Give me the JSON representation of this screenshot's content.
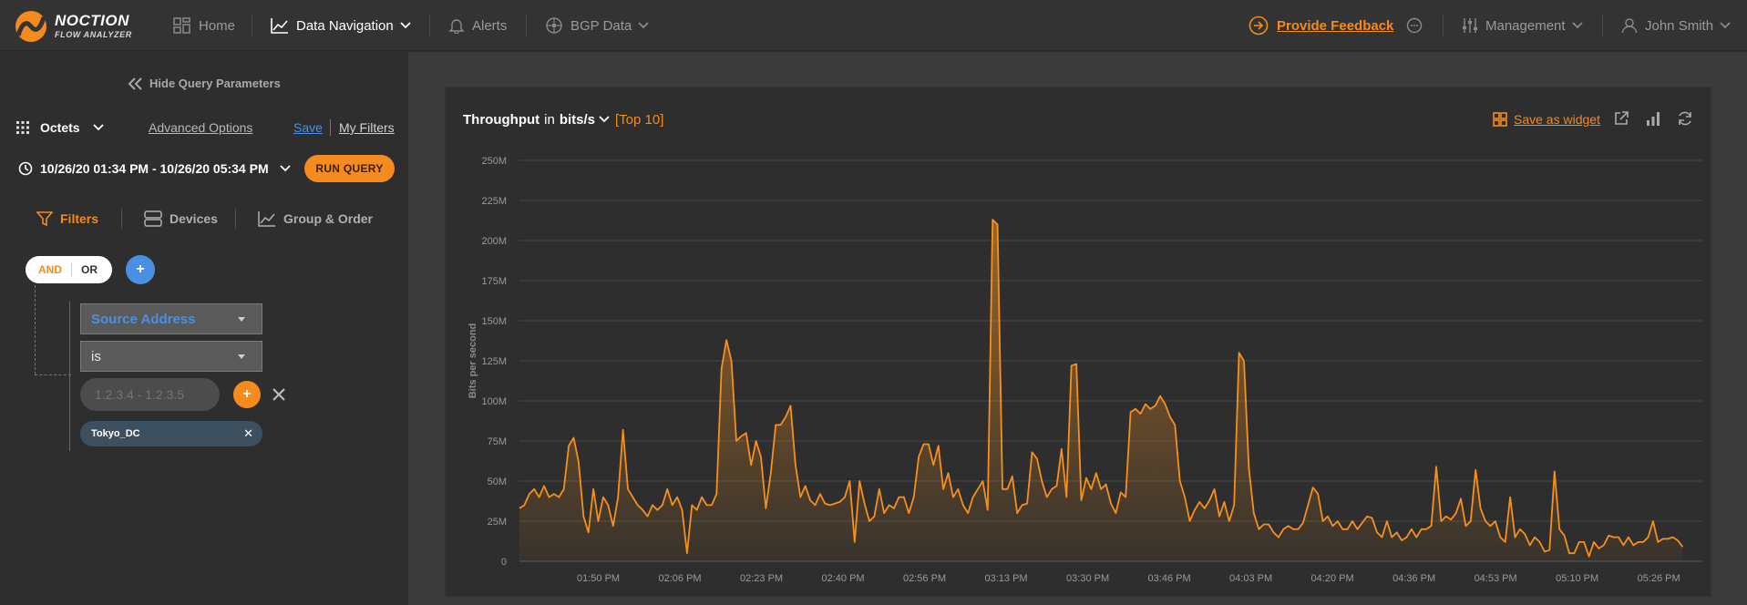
{
  "app": {
    "logo_name": "NOCTION",
    "logo_sub": "FLOW ANALYZER",
    "brand_color": "#f58a1f",
    "link_blue": "#4a90e2"
  },
  "nav": {
    "home": "Home",
    "data_navigation": "Data Navigation",
    "alerts": "Alerts",
    "bgp_data": "BGP Data",
    "provide_feedback": "Provide Feedback",
    "management": "Management",
    "user": "John Smith"
  },
  "sidebar": {
    "hide_query": "Hide Query Parameters",
    "metric": "Octets",
    "advanced_options": "Advanced Options",
    "save": "Save",
    "my_filters": "My Filters",
    "date_range": "10/26/20 01:34 PM - 10/26/20 05:34 PM",
    "run_query": "RUN QUERY",
    "tabs": {
      "filters": "Filters",
      "devices": "Devices",
      "group_order": "Group & Order"
    },
    "logic": {
      "and": "AND",
      "or": "OR"
    },
    "plus": "+",
    "filter": {
      "field": "Source Address",
      "operator": "is",
      "value_placeholder": "1.2.3.4 - 1.2.3.5",
      "tag": "Tokyo_DC",
      "tag_remove": "✕"
    }
  },
  "panel": {
    "title": "Throughput",
    "in_word": "in",
    "unit": "bits/s",
    "top": "[Top 10]",
    "save_widget": "Save as widget"
  },
  "chart_data": {
    "type": "area",
    "title": "",
    "ylabel": "Bits per second",
    "xlabel": "",
    "ylim": [
      0,
      250000000
    ],
    "y_ticks": [
      "0",
      "25M",
      "50M",
      "75M",
      "100M",
      "125M",
      "150M",
      "175M",
      "200M",
      "225M",
      "250M"
    ],
    "x_ticks": [
      "01:50 PM",
      "02:06 PM",
      "02:23 PM",
      "02:40 PM",
      "02:56 PM",
      "03:13 PM",
      "03:30 PM",
      "03:46 PM",
      "04:03 PM",
      "04:20 PM",
      "04:36 PM",
      "04:53 PM",
      "05:10 PM",
      "05:26 PM"
    ],
    "x_range_minutes": [
      0,
      240
    ],
    "grid": true,
    "line_color": "#f5901f",
    "series": [
      {
        "values_m": [
          [
            0,
            33
          ],
          [
            1,
            35
          ],
          [
            2,
            42
          ],
          [
            3,
            45
          ],
          [
            4,
            40
          ],
          [
            5,
            47
          ],
          [
            6,
            40
          ],
          [
            7,
            42
          ],
          [
            8,
            40
          ],
          [
            9,
            45
          ],
          [
            10,
            72
          ],
          [
            11,
            77
          ],
          [
            12,
            62
          ],
          [
            13,
            28
          ],
          [
            14,
            18
          ],
          [
            15,
            45
          ],
          [
            16,
            25
          ],
          [
            17,
            40
          ],
          [
            18,
            35
          ],
          [
            19,
            22
          ],
          [
            20,
            40
          ],
          [
            21,
            82
          ],
          [
            22,
            45
          ],
          [
            23,
            40
          ],
          [
            24,
            35
          ],
          [
            25,
            32
          ],
          [
            26,
            28
          ],
          [
            27,
            35
          ],
          [
            28,
            32
          ],
          [
            29,
            35
          ],
          [
            30,
            45
          ],
          [
            31,
            35
          ],
          [
            32,
            40
          ],
          [
            33,
            32
          ],
          [
            34,
            5
          ],
          [
            35,
            35
          ],
          [
            36,
            32
          ],
          [
            37,
            40
          ],
          [
            38,
            35
          ],
          [
            39,
            35
          ],
          [
            40,
            42
          ],
          [
            41,
            120
          ],
          [
            42,
            138
          ],
          [
            43,
            125
          ],
          [
            44,
            75
          ],
          [
            45,
            78
          ],
          [
            46,
            80
          ],
          [
            47,
            60
          ],
          [
            48,
            75
          ],
          [
            49,
            65
          ],
          [
            50,
            33
          ],
          [
            51,
            55
          ],
          [
            52,
            85
          ],
          [
            53,
            85
          ],
          [
            54,
            90
          ],
          [
            55,
            97
          ],
          [
            56,
            60
          ],
          [
            57,
            40
          ],
          [
            58,
            47
          ],
          [
            59,
            38
          ],
          [
            60,
            35
          ],
          [
            61,
            42
          ],
          [
            62,
            36
          ],
          [
            63,
            35
          ],
          [
            64,
            36
          ],
          [
            65,
            37
          ],
          [
            66,
            40
          ],
          [
            67,
            50
          ],
          [
            68,
            12
          ],
          [
            69,
            50
          ],
          [
            70,
            36
          ],
          [
            71,
            25
          ],
          [
            72,
            28
          ],
          [
            73,
            45
          ],
          [
            74,
            30
          ],
          [
            75,
            35
          ],
          [
            76,
            33
          ],
          [
            77,
            40
          ],
          [
            78,
            40
          ],
          [
            79,
            30
          ],
          [
            80,
            40
          ],
          [
            81,
            65
          ],
          [
            82,
            73
          ],
          [
            83,
            73
          ],
          [
            84,
            60
          ],
          [
            85,
            72
          ],
          [
            86,
            45
          ],
          [
            87,
            55
          ],
          [
            88,
            40
          ],
          [
            89,
            45
          ],
          [
            90,
            35
          ],
          [
            91,
            30
          ],
          [
            92,
            40
          ],
          [
            93,
            45
          ],
          [
            94,
            50
          ],
          [
            95,
            32
          ],
          [
            96,
            213
          ],
          [
            97,
            210
          ],
          [
            98,
            45
          ],
          [
            99,
            45
          ],
          [
            100,
            53
          ],
          [
            101,
            30
          ],
          [
            102,
            35
          ],
          [
            103,
            36
          ],
          [
            104,
            68
          ],
          [
            105,
            64
          ],
          [
            106,
            50
          ],
          [
            107,
            40
          ],
          [
            108,
            45
          ],
          [
            109,
            47
          ],
          [
            110,
            70
          ],
          [
            111,
            40
          ],
          [
            112,
            122
          ],
          [
            113,
            123
          ],
          [
            114,
            38
          ],
          [
            115,
            52
          ],
          [
            116,
            45
          ],
          [
            117,
            55
          ],
          [
            118,
            45
          ],
          [
            119,
            48
          ],
          [
            120,
            36
          ],
          [
            121,
            30
          ],
          [
            122,
            43
          ],
          [
            123,
            40
          ],
          [
            124,
            93
          ],
          [
            125,
            95
          ],
          [
            126,
            92
          ],
          [
            127,
            98
          ],
          [
            128,
            95
          ],
          [
            129,
            97
          ],
          [
            130,
            103
          ],
          [
            131,
            98
          ],
          [
            132,
            90
          ],
          [
            133,
            85
          ],
          [
            134,
            50
          ],
          [
            135,
            40
          ],
          [
            136,
            25
          ],
          [
            137,
            32
          ],
          [
            138,
            37
          ],
          [
            139,
            33
          ],
          [
            140,
            38
          ],
          [
            141,
            45
          ],
          [
            142,
            28
          ],
          [
            143,
            37
          ],
          [
            144,
            25
          ],
          [
            145,
            35
          ],
          [
            146,
            130
          ],
          [
            147,
            125
          ],
          [
            148,
            58
          ],
          [
            149,
            30
          ],
          [
            150,
            20
          ],
          [
            151,
            23
          ],
          [
            152,
            23
          ],
          [
            153,
            18
          ],
          [
            154,
            15
          ],
          [
            155,
            20
          ],
          [
            156,
            22
          ],
          [
            157,
            20
          ],
          [
            158,
            20
          ],
          [
            159,
            24
          ],
          [
            160,
            35
          ],
          [
            161,
            46
          ],
          [
            162,
            42
          ],
          [
            163,
            25
          ],
          [
            164,
            28
          ],
          [
            165,
            22
          ],
          [
            166,
            25
          ],
          [
            167,
            20
          ],
          [
            168,
            20
          ],
          [
            169,
            25
          ],
          [
            170,
            20
          ],
          [
            171,
            24
          ],
          [
            172,
            28
          ],
          [
            173,
            27
          ],
          [
            174,
            18
          ],
          [
            175,
            15
          ],
          [
            176,
            25
          ],
          [
            177,
            15
          ],
          [
            178,
            18
          ],
          [
            179,
            13
          ],
          [
            180,
            15
          ],
          [
            181,
            20
          ],
          [
            182,
            15
          ],
          [
            183,
            20
          ],
          [
            184,
            20
          ],
          [
            185,
            22
          ],
          [
            186,
            59
          ],
          [
            187,
            25
          ],
          [
            188,
            28
          ],
          [
            189,
            26
          ],
          [
            190,
            30
          ],
          [
            191,
            39
          ],
          [
            192,
            22
          ],
          [
            193,
            25
          ],
          [
            194,
            57
          ],
          [
            195,
            33
          ],
          [
            196,
            25
          ],
          [
            197,
            22
          ],
          [
            198,
            25
          ],
          [
            199,
            15
          ],
          [
            200,
            12
          ],
          [
            201,
            40
          ],
          [
            202,
            15
          ],
          [
            203,
            20
          ],
          [
            204,
            17
          ],
          [
            205,
            10
          ],
          [
            206,
            15
          ],
          [
            207,
            12
          ],
          [
            208,
            6
          ],
          [
            209,
            7
          ],
          [
            210,
            56
          ],
          [
            211,
            20
          ],
          [
            212,
            16
          ],
          [
            213,
            5
          ],
          [
            214,
            5
          ],
          [
            215,
            12
          ],
          [
            216,
            12
          ],
          [
            217,
            3
          ],
          [
            218,
            12
          ],
          [
            219,
            8
          ],
          [
            220,
            10
          ],
          [
            221,
            16
          ],
          [
            222,
            15
          ],
          [
            223,
            15
          ],
          [
            224,
            10
          ],
          [
            225,
            15
          ],
          [
            226,
            10
          ],
          [
            227,
            12
          ],
          [
            228,
            12
          ],
          [
            229,
            15
          ],
          [
            230,
            25
          ],
          [
            231,
            12
          ],
          [
            232,
            14
          ],
          [
            233,
            14
          ],
          [
            234,
            15
          ],
          [
            235,
            13
          ],
          [
            236,
            9
          ]
        ]
      }
    ]
  }
}
